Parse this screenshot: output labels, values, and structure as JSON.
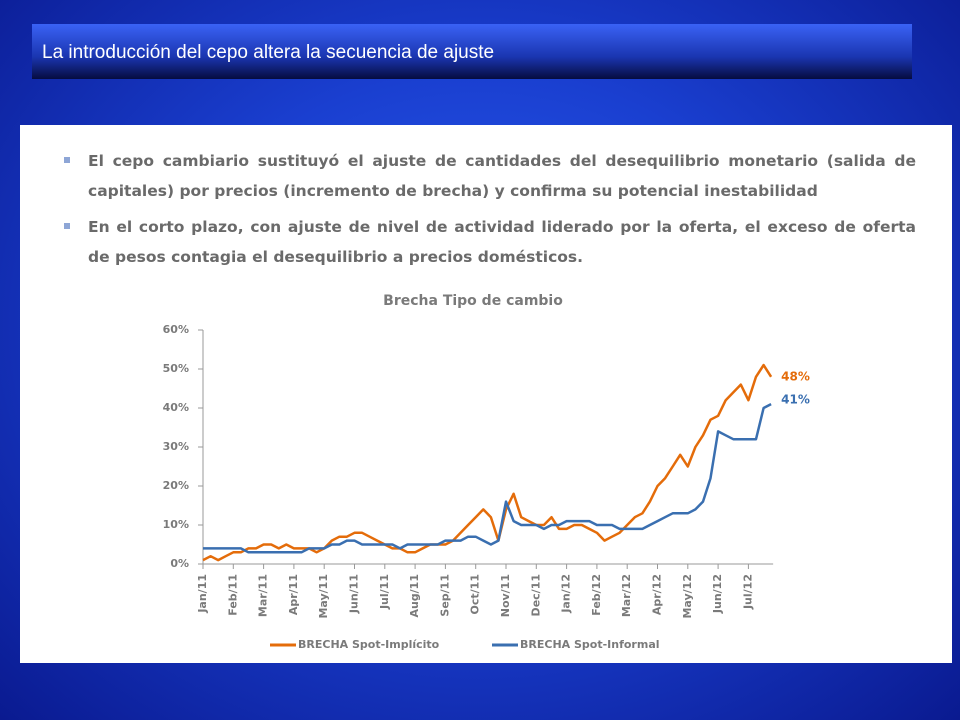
{
  "slide": {
    "title": "La introducción del cepo altera la secuencia de ajuste",
    "bullets": [
      "El cepo cambiario sustituyó el ajuste de cantidades del desequilibrio monetario (salida de capitales) por precios (incremento de brecha) y confirma su potencial inestabilidad",
      "En el corto plazo, con ajuste de nivel de actividad liderado por la oferta, el exceso de oferta de pesos contagia el desequilibrio a precios domésticos."
    ]
  },
  "chart_data": {
    "type": "line",
    "title": "Brecha Tipo de cambio",
    "categories": [
      "Jan/11",
      null,
      null,
      null,
      "Feb/11",
      null,
      null,
      null,
      "Mar/11",
      null,
      null,
      null,
      "Apr/11",
      null,
      null,
      null,
      "May/11",
      null,
      null,
      null,
      "Jun/11",
      null,
      null,
      null,
      "Jul/11",
      null,
      null,
      null,
      "Aug/11",
      null,
      null,
      null,
      "Sep/11",
      null,
      null,
      null,
      "Oct/11",
      null,
      null,
      null,
      "Nov/11",
      null,
      null,
      null,
      "Dec/11",
      null,
      null,
      null,
      "Jan/12",
      null,
      null,
      null,
      "Feb/12",
      null,
      null,
      null,
      "Mar/12",
      null,
      null,
      null,
      "Apr/12",
      null,
      null,
      null,
      "May/12",
      null,
      null,
      null,
      "Jun/12",
      null,
      null,
      null,
      "Jul/12",
      null,
      null,
      null
    ],
    "series": [
      {
        "name": "BRECHA Spot-Implícito",
        "color": "#e46c0a",
        "end_label": "48%",
        "values": [
          1,
          2,
          1,
          2,
          3,
          3,
          4,
          4,
          5,
          5,
          4,
          5,
          4,
          4,
          4,
          3,
          4,
          6,
          7,
          7,
          8,
          8,
          7,
          6,
          5,
          4,
          4,
          3,
          3,
          4,
          5,
          5,
          5,
          6,
          8,
          10,
          12,
          14,
          12,
          6,
          14,
          18,
          12,
          11,
          10,
          10,
          12,
          9,
          9,
          10,
          10,
          9,
          8,
          6,
          7,
          8,
          10,
          12,
          13,
          16,
          20,
          22,
          25,
          28,
          25,
          30,
          33,
          37,
          38,
          42,
          44,
          46,
          42,
          48,
          51,
          48
        ]
      },
      {
        "name": "BRECHA Spot-Informal",
        "color": "#3a6fb0",
        "end_label": "41%",
        "values": [
          4,
          4,
          4,
          4,
          4,
          4,
          3,
          3,
          3,
          3,
          3,
          3,
          3,
          3,
          4,
          4,
          4,
          5,
          5,
          6,
          6,
          5,
          5,
          5,
          5,
          5,
          4,
          5,
          5,
          5,
          5,
          5,
          6,
          6,
          6,
          7,
          7,
          6,
          5,
          6,
          16,
          11,
          10,
          10,
          10,
          9,
          10,
          10,
          11,
          11,
          11,
          11,
          10,
          10,
          10,
          9,
          9,
          9,
          9,
          10,
          11,
          12,
          13,
          13,
          13,
          14,
          16,
          22,
          34,
          33,
          32,
          32,
          32,
          32,
          40,
          41
        ]
      }
    ],
    "ylim": [
      0,
      60
    ],
    "yticks": [
      {
        "value": 0,
        "label": "0%"
      },
      {
        "value": 10,
        "label": "10%"
      },
      {
        "value": 20,
        "label": "20%"
      },
      {
        "value": 30,
        "label": "30%"
      },
      {
        "value": 40,
        "label": "40%"
      },
      {
        "value": 50,
        "label": "50%"
      },
      {
        "value": 60,
        "label": "60%"
      }
    ]
  }
}
